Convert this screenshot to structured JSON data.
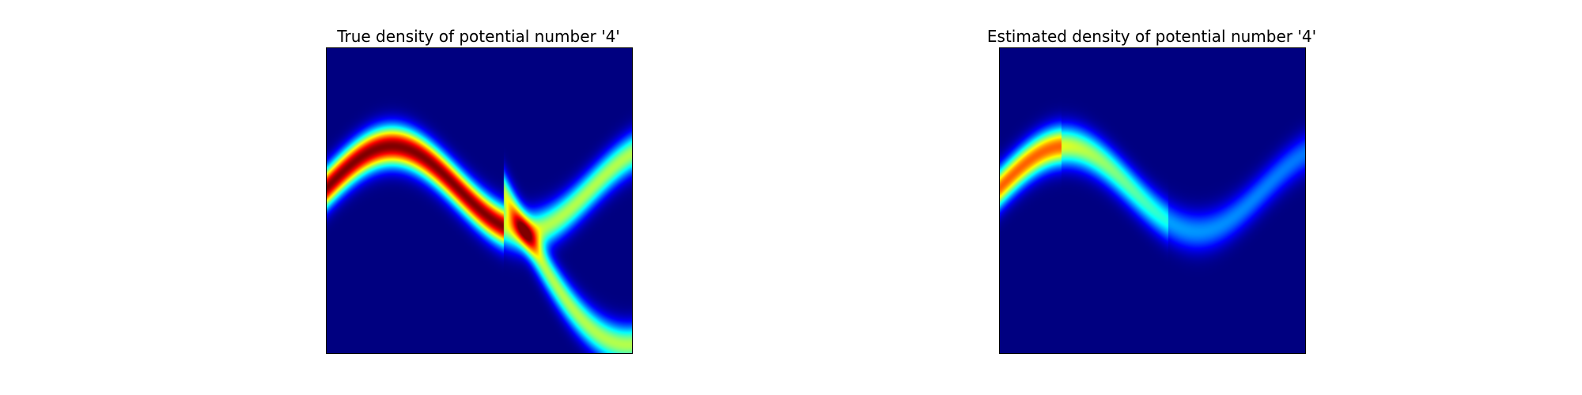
{
  "figure": {
    "background": "#ffffff"
  },
  "chart_data": [
    {
      "type": "heatmap",
      "title": "True density of potential number '4'",
      "colormap": "jet",
      "axes_visible": false,
      "grid": false,
      "bands": [
        {
          "name": "",
          "phase": 0.0,
          "weight": 1.0
        },
        {
          "name": "",
          "phase": 1.0,
          "weight": 0.55
        },
        {
          "name": "",
          "phase": 1.0,
          "weight": 0.55,
          "branch": "lower"
        }
      ]
    },
    {
      "type": "heatmap",
      "title": "Estimated density of potential number '4'",
      "colormap": "jet",
      "axes_visible": false,
      "grid": false,
      "bands": [
        {
          "name": "",
          "phase": 0.0,
          "weight": 0.75
        },
        {
          "name": "",
          "phase": 1.0,
          "weight": 0.25
        }
      ]
    }
  ]
}
